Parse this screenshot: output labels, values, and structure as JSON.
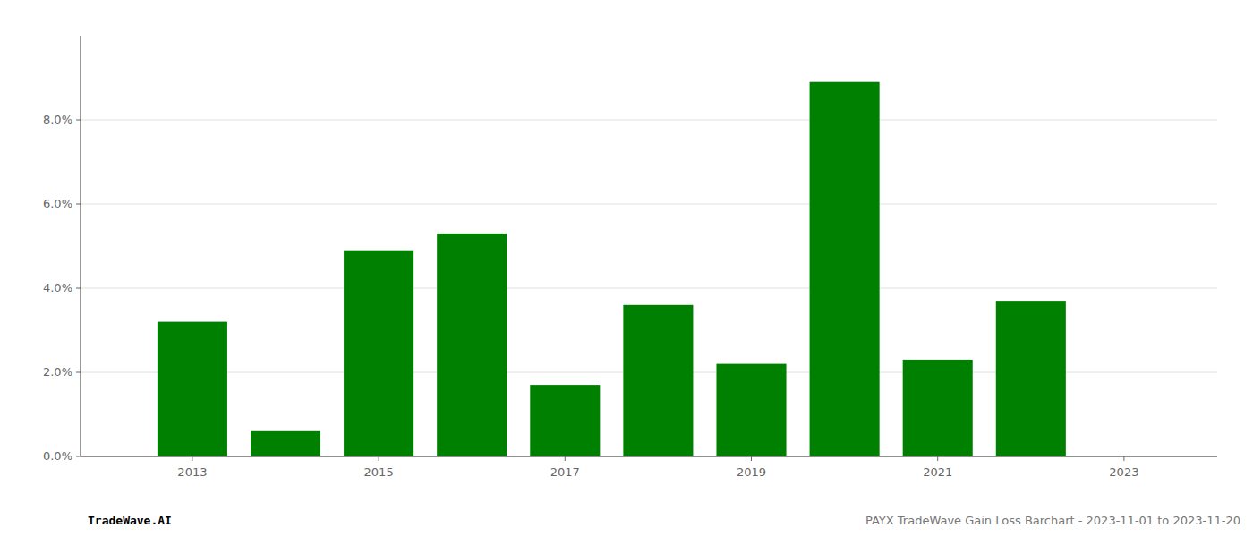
{
  "chart_data": {
    "type": "bar",
    "x": [
      2013,
      2014,
      2015,
      2016,
      2017,
      2018,
      2019,
      2020,
      2021,
      2022
    ],
    "values": [
      0.032,
      0.006,
      0.049,
      0.053,
      0.017,
      0.036,
      0.022,
      0.089,
      0.023,
      0.037
    ],
    "color": "#008000",
    "xlim": [
      2011.8,
      2024.0
    ],
    "xticks": [
      2013,
      2015,
      2017,
      2019,
      2021,
      2023
    ],
    "ylim": [
      0,
      0.1
    ],
    "yticks": [
      {
        "value": 0.0,
        "label": "0.0%"
      },
      {
        "value": 0.02,
        "label": "2.0%"
      },
      {
        "value": 0.04,
        "label": "4.0%"
      },
      {
        "value": 0.06,
        "label": "6.0%"
      },
      {
        "value": 0.08,
        "label": "8.0%"
      }
    ],
    "grid": true,
    "annotations": [
      "TradeWave.AI",
      "PAYX TradeWave Gain Loss Barchart - 2023-11-01 to 2023-11-20"
    ]
  }
}
